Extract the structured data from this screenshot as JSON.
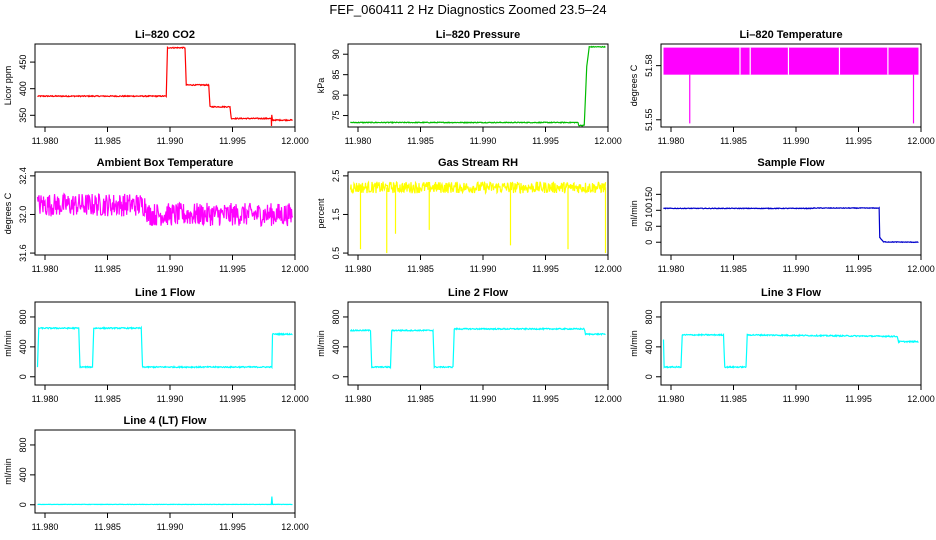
{
  "figure_title": "FEF_060411  2 Hz Diagnostics Zoomed 23.5–24",
  "chart_data": [
    {
      "type": "line",
      "title": "Li–820 CO2",
      "ylabel": "Licor ppm",
      "color": "#ff0000",
      "xlim": [
        11.9792,
        12.0
      ],
      "ylim": [
        328,
        484
      ],
      "xticks": [
        11.98,
        11.985,
        11.99,
        11.995,
        12.0
      ],
      "xtick_labels": [
        "11.980",
        "11.985",
        "11.990",
        "11.995",
        "12.000"
      ],
      "yticks": [
        350,
        400,
        450
      ],
      "ytick_labels": [
        "350",
        "400",
        "450"
      ],
      "noise": 1,
      "x": [
        11.9794,
        11.9897,
        11.9898,
        11.9912,
        11.9913,
        11.9931,
        11.9932,
        11.9948,
        11.9949,
        11.9981,
        11.99812,
        11.99814,
        11.9982,
        11.9998
      ],
      "y": [
        386,
        386,
        477,
        477,
        407,
        407,
        366,
        366,
        344,
        344,
        328,
        350,
        341,
        341
      ]
    },
    {
      "type": "line",
      "title": "Li–820 Pressure",
      "ylabel": "kPa",
      "color": "#00bb00",
      "xlim": [
        11.9792,
        12.0
      ],
      "ylim": [
        72.2,
        92.5
      ],
      "xticks": [
        11.98,
        11.985,
        11.99,
        11.995,
        12.0
      ],
      "xtick_labels": [
        "11.980",
        "11.985",
        "11.990",
        "11.995",
        "12.000"
      ],
      "yticks": [
        75,
        80,
        85,
        90
      ],
      "ytick_labels": [
        "75",
        "80",
        "85",
        "90"
      ],
      "noise": 0.1,
      "x": [
        11.9794,
        11.9976,
        11.99765,
        11.9981,
        11.9983,
        11.9985,
        11.9998
      ],
      "y": [
        73.3,
        73.3,
        72.6,
        72.6,
        87,
        91.8,
        91.8
      ]
    },
    {
      "type": "line",
      "title": "Li–820 Temperature",
      "ylabel": "degrees C",
      "color": "#ff00ff",
      "xlim": [
        11.9792,
        12.0
      ],
      "ylim": [
        51.546,
        51.592
      ],
      "xticks": [
        11.98,
        11.985,
        11.99,
        11.995,
        12.0
      ],
      "xtick_labels": [
        "11.980",
        "11.985",
        "11.990",
        "11.995",
        "12.000"
      ],
      "yticks": [
        51.55,
        51.58
      ],
      "ytick_labels": [
        "51.55",
        "51.58"
      ],
      "noise": 0,
      "fill_band": [
        51.575,
        51.59
      ],
      "x": [
        11.9794,
        11.9998
      ],
      "y": [
        51.575,
        51.575
      ],
      "spikes": [
        {
          "x": 11.9815,
          "y": 51.548
        },
        {
          "x": 11.9994,
          "y": 51.548
        }
      ]
    },
    {
      "type": "line",
      "title": "Ambient Box Temperature",
      "ylabel": "degrees C",
      "color": "#ff00ff",
      "xlim": [
        11.9792,
        12.0
      ],
      "ylim": [
        31.58,
        32.44
      ],
      "xticks": [
        11.98,
        11.985,
        11.99,
        11.995,
        12.0
      ],
      "xtick_labels": [
        "11.980",
        "11.985",
        "11.990",
        "11.995",
        "12.000"
      ],
      "yticks": [
        31.6,
        32.0,
        32.4
      ],
      "ytick_labels": [
        "31.6",
        "32.0",
        "32.4"
      ],
      "noise": 0.12,
      "x": [
        11.9794,
        11.9881,
        11.9882,
        11.9998
      ],
      "y": [
        32.1,
        32.1,
        32.0,
        32.0
      ]
    },
    {
      "type": "line",
      "title": "Gas Stream RH",
      "ylabel": "percent",
      "color": "#ffff00",
      "xlim": [
        11.9792,
        12.0
      ],
      "ylim": [
        0.45,
        2.6
      ],
      "xticks": [
        11.98,
        11.985,
        11.99,
        11.995,
        12.0
      ],
      "xtick_labels": [
        "11.980",
        "11.985",
        "11.990",
        "11.995",
        "12.000"
      ],
      "yticks": [
        0.5,
        1.5,
        2.5
      ],
      "ytick_labels": [
        "0.5",
        "1.5",
        "2.5"
      ],
      "noise": 0.15,
      "x": [
        11.9794,
        11.9998
      ],
      "y": [
        2.2,
        2.2
      ],
      "spikes": [
        {
          "x": 11.9802,
          "y": 0.6
        },
        {
          "x": 11.9823,
          "y": 0.5
        },
        {
          "x": 11.983,
          "y": 1.0
        },
        {
          "x": 11.9857,
          "y": 1.1
        },
        {
          "x": 11.9922,
          "y": 0.7
        },
        {
          "x": 11.9968,
          "y": 0.6
        },
        {
          "x": 11.9998,
          "y": 0.5
        }
      ]
    },
    {
      "type": "line",
      "title": "Sample Flow",
      "ylabel": "ml/min",
      "color": "#0000cc",
      "xlim": [
        11.9792,
        12.0
      ],
      "ylim": [
        -40,
        220
      ],
      "xticks": [
        11.98,
        11.985,
        11.99,
        11.995,
        12.0
      ],
      "xtick_labels": [
        "11.980",
        "11.985",
        "11.990",
        "11.995",
        "12.000"
      ],
      "yticks": [
        0,
        50,
        100,
        150
      ],
      "ytick_labels": [
        "0",
        "50",
        "100",
        "150"
      ],
      "noise": 1,
      "x": [
        11.9794,
        11.9913,
        11.9914,
        11.99665,
        11.9967,
        11.997,
        11.9998
      ],
      "y": [
        106,
        106,
        107,
        107,
        15,
        1,
        0
      ]
    },
    {
      "type": "line",
      "title": "Line 1 Flow",
      "ylabel": "ml/min",
      "color": "#00ffff",
      "xlim": [
        11.9792,
        12.0
      ],
      "ylim": [
        -110,
        1000
      ],
      "xticks": [
        11.98,
        11.985,
        11.99,
        11.995,
        12.0
      ],
      "xtick_labels": [
        "11.980",
        "11.985",
        "11.990",
        "11.995",
        "12.000"
      ],
      "yticks": [
        0,
        400,
        800
      ],
      "ytick_labels": [
        "0",
        "400",
        "800"
      ],
      "noise": 8,
      "x": [
        11.9794,
        11.9795,
        11.9827,
        11.9828,
        11.9838,
        11.9839,
        11.9877,
        11.9878,
        11.99815,
        11.9982,
        11.9998
      ],
      "y": [
        130,
        650,
        650,
        130,
        130,
        650,
        650,
        130,
        130,
        570,
        570
      ]
    },
    {
      "type": "line",
      "title": "Line 2 Flow",
      "ylabel": "ml/min",
      "color": "#00ffff",
      "xlim": [
        11.9792,
        12.0
      ],
      "ylim": [
        -110,
        1000
      ],
      "xticks": [
        11.98,
        11.985,
        11.99,
        11.995,
        12.0
      ],
      "xtick_labels": [
        "11.980",
        "11.985",
        "11.990",
        "11.995",
        "12.000"
      ],
      "yticks": [
        0,
        400,
        800
      ],
      "ytick_labels": [
        "0",
        "400",
        "800"
      ],
      "noise": 8,
      "x": [
        11.9794,
        11.981,
        11.9811,
        11.9826,
        11.9827,
        11.986,
        11.9861,
        11.9876,
        11.9877,
        11.9981,
        11.9982,
        11.9998
      ],
      "y": [
        620,
        620,
        130,
        130,
        620,
        620,
        130,
        130,
        640,
        640,
        570,
        570
      ]
    },
    {
      "type": "line",
      "title": "Line 3 Flow",
      "ylabel": "ml/min",
      "color": "#00ffff",
      "xlim": [
        11.9792,
        12.0
      ],
      "ylim": [
        -110,
        1000
      ],
      "xticks": [
        11.98,
        11.985,
        11.99,
        11.995,
        12.0
      ],
      "xtick_labels": [
        "11.980",
        "11.985",
        "11.990",
        "11.995",
        "12.000"
      ],
      "yticks": [
        0,
        400,
        800
      ],
      "ytick_labels": [
        "0",
        "400",
        "800"
      ],
      "noise": 8,
      "x": [
        11.9794,
        11.97945,
        11.9795,
        11.9808,
        11.9809,
        11.9842,
        11.9843,
        11.986,
        11.9861,
        11.9981,
        11.9982,
        11.9998
      ],
      "y": [
        500,
        130,
        130,
        130,
        560,
        560,
        130,
        130,
        560,
        540,
        470,
        470
      ]
    },
    {
      "type": "line",
      "title": "Line 4 (LT) Flow",
      "ylabel": "ml/min",
      "color": "#00ffff",
      "xlim": [
        11.9792,
        12.0
      ],
      "ylim": [
        -110,
        1000
      ],
      "xticks": [
        11.98,
        11.985,
        11.99,
        11.995,
        12.0
      ],
      "xtick_labels": [
        "11.980",
        "11.985",
        "11.990",
        "11.995",
        "12.000"
      ],
      "yticks": [
        0,
        400,
        800
      ],
      "ytick_labels": [
        "0",
        "400",
        "800"
      ],
      "noise": 2,
      "x": [
        11.9794,
        11.9981,
        11.99815,
        11.9982,
        11.9998
      ],
      "y": [
        5,
        5,
        110,
        5,
        5
      ]
    }
  ]
}
